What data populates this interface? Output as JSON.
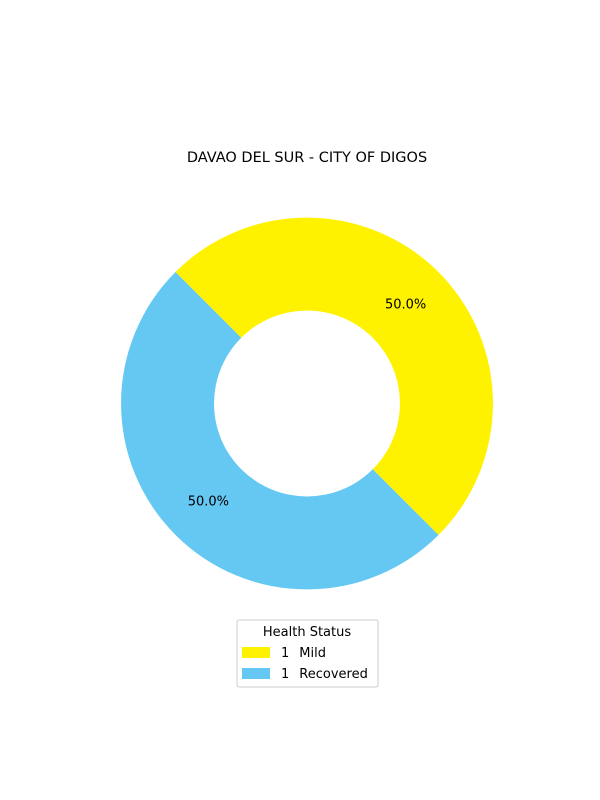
{
  "chart_data": {
    "type": "pie",
    "title": "DAVAO DEL SUR - CITY OF DIGOS",
    "donut": true,
    "start_angle_deg": 135,
    "direction": "clockwise",
    "slices": [
      {
        "label": "Mild",
        "count_text": "1",
        "value": 1,
        "percent_label": "50.0%",
        "color": "#FFF200"
      },
      {
        "label": "Recovered",
        "count_text": "1",
        "value": 1,
        "percent_label": "50.0%",
        "color": "#64C8F2"
      }
    ],
    "legend": {
      "title": "Health Status",
      "placement": "bottom-center"
    }
  }
}
